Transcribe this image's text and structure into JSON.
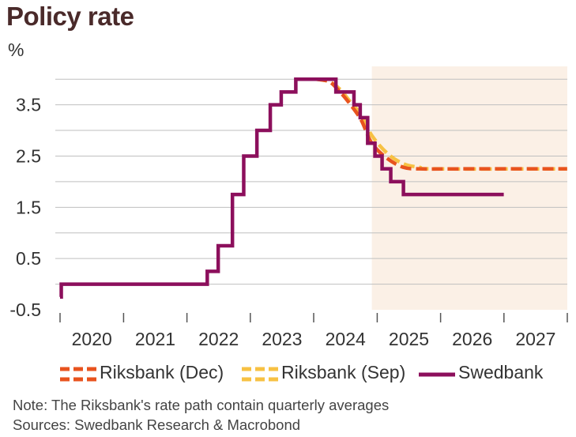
{
  "title": "Policy rate",
  "unit_label": "%",
  "note": "Note: The Riksbank's rate path contain quarterly averages",
  "sources": "Sources: Swedbank Research & Macrobond",
  "colors": {
    "swedbank": "#8c0f5c",
    "riksbank_dec": "#e8531e",
    "riksbank_sep": "#f7c143",
    "forecast_shade": "#fbf0e6",
    "grid": "#bfbfbf"
  },
  "chart_data": {
    "type": "line",
    "xlabel": "",
    "ylabel": "%",
    "ylim": [
      -0.5,
      4.25
    ],
    "xlim": [
      "2020-01-01",
      "2028-01-01"
    ],
    "y_ticks": [
      "-0.5",
      "0.5",
      "1.5",
      "2.5",
      "3.5"
    ],
    "x_tick_labels": [
      "2020",
      "2021",
      "2022",
      "2023",
      "2024",
      "2025",
      "2026",
      "2027"
    ],
    "grid": true,
    "legend_position": "bottom",
    "forecast_region_start": "2024-12-01",
    "series": [
      {
        "name": "Riksbank (Dec)",
        "style": "dashed",
        "color": "#e8531e",
        "points": [
          [
            "2024-01-15",
            4.0
          ],
          [
            "2024-04-01",
            3.95
          ],
          [
            "2024-06-01",
            3.75
          ],
          [
            "2024-08-01",
            3.5
          ],
          [
            "2024-10-01",
            3.2
          ],
          [
            "2024-12-01",
            2.75
          ],
          [
            "2025-03-01",
            2.45
          ],
          [
            "2025-06-01",
            2.28
          ],
          [
            "2025-09-01",
            2.25
          ],
          [
            "2026-06-01",
            2.25
          ],
          [
            "2027-12-31",
            2.25
          ]
        ]
      },
      {
        "name": "Riksbank (Sep)",
        "style": "dashed",
        "color": "#f7c143",
        "points": [
          [
            "2024-01-15",
            4.0
          ],
          [
            "2024-04-01",
            3.95
          ],
          [
            "2024-06-01",
            3.8
          ],
          [
            "2024-08-01",
            3.55
          ],
          [
            "2024-10-01",
            3.3
          ],
          [
            "2024-12-01",
            2.9
          ],
          [
            "2025-03-01",
            2.55
          ],
          [
            "2025-06-01",
            2.35
          ],
          [
            "2025-09-01",
            2.28
          ],
          [
            "2025-12-01",
            2.25
          ],
          [
            "2027-12-31",
            2.25
          ]
        ]
      },
      {
        "name": "Swedbank",
        "style": "step",
        "color": "#8c0f5c",
        "points": [
          [
            "2020-01-01",
            -0.25
          ],
          [
            "2020-01-08",
            0.0
          ],
          [
            "2022-04-28",
            0.25
          ],
          [
            "2022-06-30",
            0.75
          ],
          [
            "2022-09-20",
            1.75
          ],
          [
            "2022-11-24",
            2.5
          ],
          [
            "2023-02-08",
            3.0
          ],
          [
            "2023-04-26",
            3.5
          ],
          [
            "2023-06-28",
            3.75
          ],
          [
            "2023-09-20",
            4.0
          ],
          [
            "2024-05-08",
            3.75
          ],
          [
            "2024-08-20",
            3.5
          ],
          [
            "2024-09-25",
            3.25
          ],
          [
            "2024-11-07",
            2.75
          ],
          [
            "2024-12-19",
            2.5
          ],
          [
            "2025-01-29",
            2.25
          ],
          [
            "2025-03-20",
            2.0
          ],
          [
            "2025-06-01",
            1.75
          ],
          [
            "2026-12-31",
            1.75
          ]
        ]
      }
    ]
  }
}
